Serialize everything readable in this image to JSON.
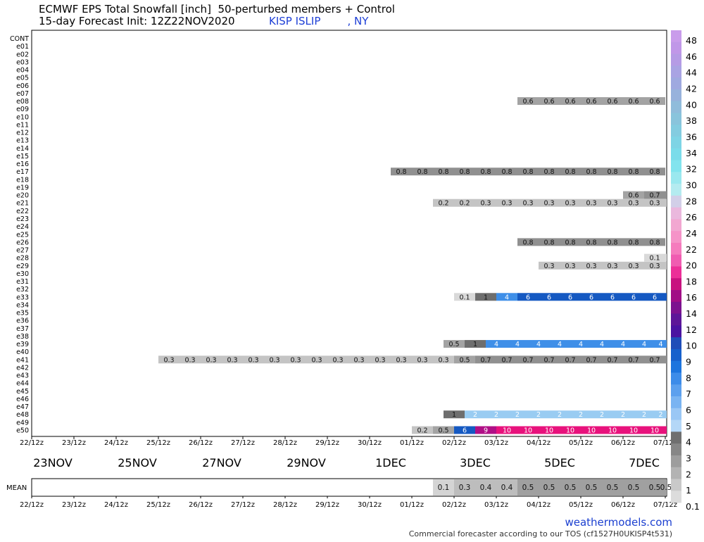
{
  "header": {
    "line1": "ECMWF EPS Total Snowfall [inch]  50-perturbed members + Control",
    "line2": "15-day Forecast Init: 12Z22NOV2020",
    "station": "KISP ISLIP        , NY"
  },
  "footer": {
    "brand": "weathermodels.com",
    "tos": "Commercial forecaster according to our TOS (cf1527H0UKISP4t531)"
  },
  "chart_data": {
    "type": "heatmap",
    "members": [
      "CONT",
      "e01",
      "e02",
      "e03",
      "e04",
      "e05",
      "e06",
      "e07",
      "e08",
      "e09",
      "e10",
      "e11",
      "e12",
      "e13",
      "e14",
      "e15",
      "e16",
      "e17",
      "e18",
      "e19",
      "e20",
      "e21",
      "e22",
      "e23",
      "e24",
      "e25",
      "e26",
      "e27",
      "e28",
      "e29",
      "e30",
      "e31",
      "e32",
      "e33",
      "e34",
      "e35",
      "e36",
      "e37",
      "e38",
      "e39",
      "e40",
      "e41",
      "e42",
      "e43",
      "e44",
      "e45",
      "e46",
      "e47",
      "e48",
      "e49",
      "e50"
    ],
    "time_ticks": [
      "22/12z",
      "23/12z",
      "24/12z",
      "25/12z",
      "26/12z",
      "27/12z",
      "28/12z",
      "29/12z",
      "30/12z",
      "01/12z",
      "02/12z",
      "03/12z",
      "04/12z",
      "05/12z",
      "06/12z",
      "07/12z"
    ],
    "date_labels": [
      "23NOV",
      "25NOV",
      "27NOV",
      "29NOV",
      "1DEC",
      "3DEC",
      "5DEC",
      "7DEC"
    ],
    "step_hours": 12,
    "mean_label": "MEAN",
    "rows": [
      {
        "member": "e08",
        "start_step": 23,
        "values": [
          0.6,
          0.6,
          0.6,
          0.6,
          0.6,
          0.6,
          0.6
        ]
      },
      {
        "member": "e17",
        "start_step": 17,
        "values": [
          0.8,
          0.8,
          0.8,
          0.8,
          0.8,
          0.8,
          0.8,
          0.8,
          0.8,
          0.8,
          0.8,
          0.8,
          0.8
        ]
      },
      {
        "member": "e20",
        "start_step": 28,
        "values": [
          0.6,
          0.7,
          0.7
        ]
      },
      {
        "member": "e21",
        "start_step": 19,
        "values": [
          0.2,
          0.2,
          0.3,
          0.3,
          0.3,
          0.3,
          0.3,
          0.3,
          0.3,
          0.3,
          0.3,
          0.3
        ]
      },
      {
        "member": "e26",
        "start_step": 23,
        "values": [
          0.8,
          0.8,
          0.8,
          0.8,
          0.8,
          0.8,
          0.8
        ]
      },
      {
        "member": "e28",
        "start_step": 29,
        "values": [
          0.1,
          0.1
        ]
      },
      {
        "member": "e29",
        "start_step": 24,
        "values": [
          0.3,
          0.3,
          0.3,
          0.3,
          0.3,
          0.3,
          0.3
        ]
      },
      {
        "member": "e33",
        "start_step": 20,
        "values": [
          0.1,
          1,
          4,
          6,
          6,
          6,
          6,
          6,
          6,
          6,
          6
        ]
      },
      {
        "member": "e39",
        "start_step": 19.5,
        "values": [
          0.5,
          1,
          4,
          4,
          4,
          4,
          4,
          4,
          4,
          4,
          4,
          4
        ]
      },
      {
        "member": "e41",
        "start_step": 6,
        "values": [
          0.3,
          0.3,
          0.3,
          0.3,
          0.3,
          0.3,
          0.3,
          0.3,
          0.3,
          0.3,
          0.3,
          0.3,
          0.3,
          0.3,
          0.5,
          0.7,
          0.7,
          0.7,
          0.7,
          0.7,
          0.7,
          0.7,
          0.7,
          0.7,
          0.7
        ]
      },
      {
        "member": "e48",
        "start_step": 19.5,
        "values": [
          1,
          2,
          2,
          2,
          2,
          2,
          2,
          2,
          2,
          2,
          2,
          2
        ]
      },
      {
        "member": "e50",
        "start_step": 18,
        "values": [
          0.2,
          0.5,
          6,
          9,
          10,
          10,
          10,
          10,
          10,
          10,
          10,
          10,
          10
        ]
      }
    ],
    "mean": {
      "start_step": 19,
      "values": [
        0.1,
        0.3,
        0.4,
        0.4,
        0.5,
        0.5,
        0.5,
        0.5,
        0.5,
        0.5,
        0.5,
        0.5
      ]
    },
    "colorbar": {
      "labels": [
        "48",
        "46",
        "44",
        "42",
        "40",
        "38",
        "36",
        "34",
        "32",
        "30",
        "28",
        "26",
        "24",
        "22",
        "20",
        "18",
        "16",
        "14",
        "12",
        "10",
        "9",
        "8",
        "7",
        "6",
        "5",
        "4",
        "3",
        "2",
        "1",
        "0.1"
      ]
    }
  }
}
